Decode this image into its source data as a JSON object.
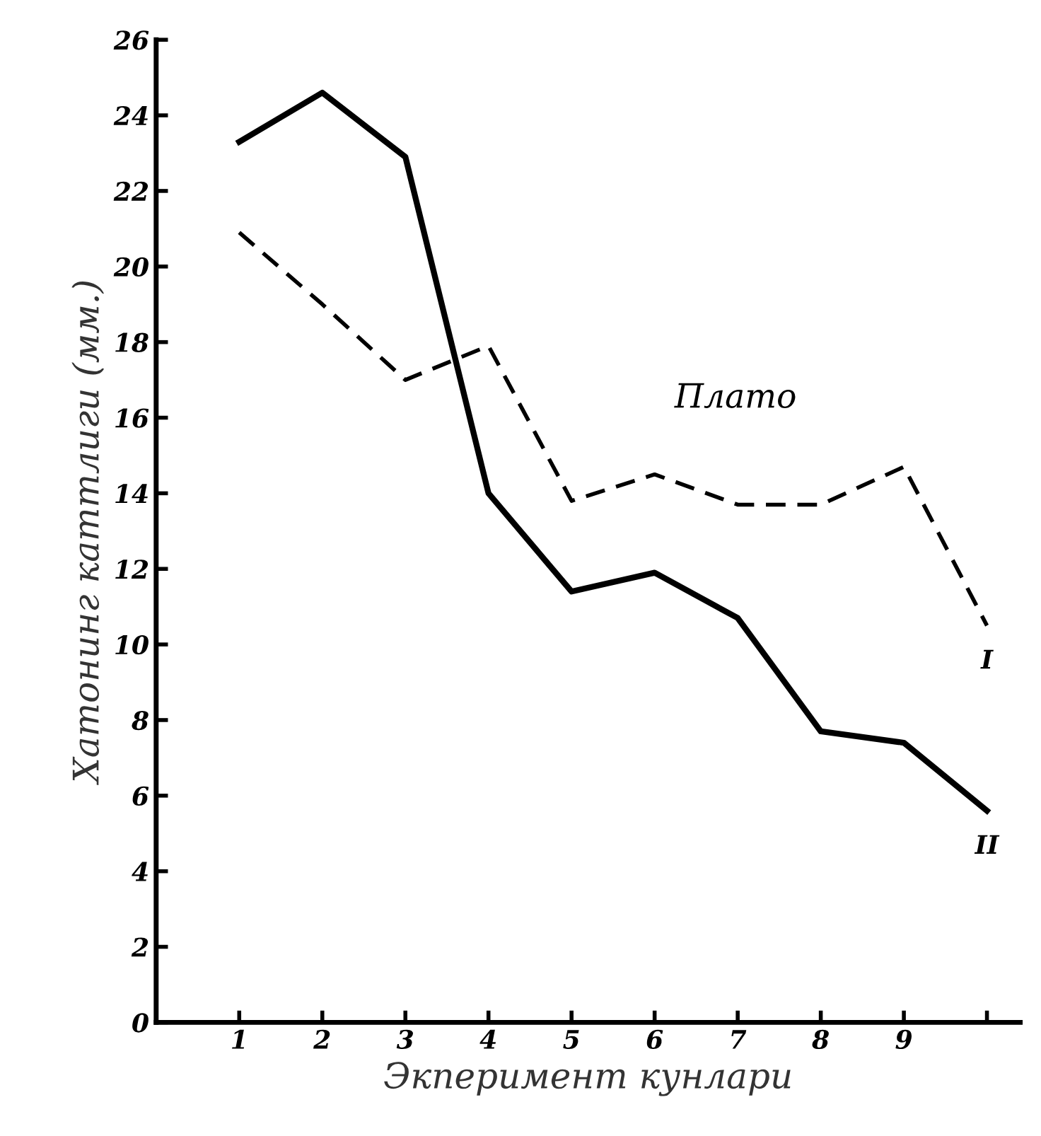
{
  "chart_data": {
    "type": "line",
    "xlabel": "Экперимент кунлари",
    "ylabel": "Хатонинг каттлиги (мм.)",
    "x": [
      1,
      2,
      3,
      4,
      5,
      6,
      7,
      8,
      9,
      10
    ],
    "series": [
      {
        "name": "I",
        "color": "#000000",
        "line_style": "dashed",
        "values": [
          20.9,
          19.0,
          17.0,
          17.9,
          13.8,
          14.5,
          13.7,
          13.7,
          14.7,
          10.5
        ]
      },
      {
        "name": "II",
        "color": "#000000",
        "line_style": "solid",
        "values": [
          23.3,
          24.6,
          22.9,
          14.0,
          11.4,
          11.9,
          10.7,
          7.7,
          7.4,
          5.6
        ]
      }
    ],
    "annotations": [
      "Плато"
    ],
    "xlim": [
      0,
      10.4
    ],
    "ylim": [
      0,
      26
    ],
    "xticks": [
      1,
      2,
      3,
      4,
      5,
      6,
      7,
      8,
      9,
      {
        "value": 10,
        "label": null
      }
    ],
    "yticks": [
      0,
      2,
      4,
      6,
      8,
      10,
      12,
      14,
      16,
      18,
      20,
      22,
      24,
      26
    ],
    "grid": false,
    "legend": false,
    "marker": "none"
  }
}
